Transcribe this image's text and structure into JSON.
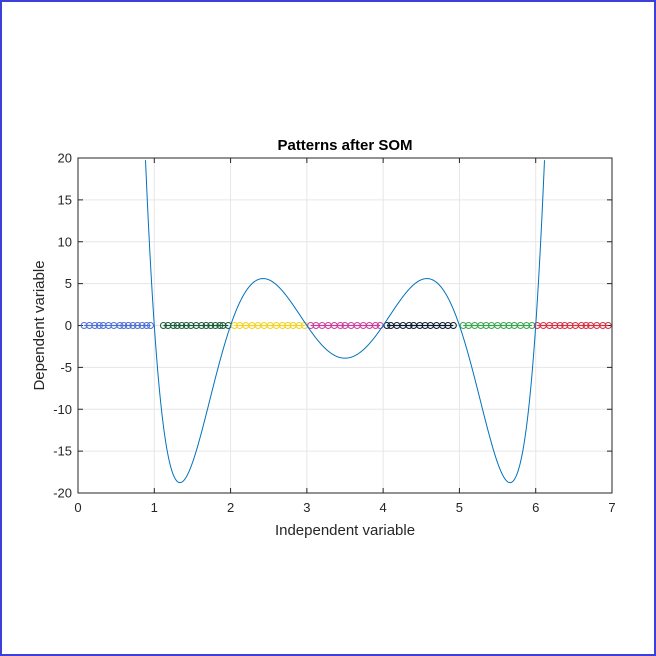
{
  "chart_data": {
    "type": "scatter",
    "title": "Patterns after SOM",
    "xlabel": "Independent variable",
    "ylabel": "Dependent variable",
    "xlim": [
      0,
      7
    ],
    "ylim": [
      -20,
      20
    ],
    "xticks": [
      0,
      1,
      2,
      3,
      4,
      5,
      6,
      7
    ],
    "yticks": [
      -20,
      -15,
      -10,
      -5,
      0,
      5,
      10,
      15,
      20
    ],
    "grid": true,
    "curve": {
      "type": "line",
      "color": "#0072bd",
      "roots": [
        1,
        2,
        3,
        4,
        5,
        6
      ],
      "scale": 1.11,
      "description_points": [
        [
          1.35,
          -16.9
        ],
        [
          2.44,
          5.0
        ],
        [
          3.5,
          -3.5
        ],
        [
          4.56,
          5.0
        ],
        [
          5.65,
          -16.9
        ]
      ]
    },
    "series": [
      {
        "color": "#4d6fd6",
        "x": [
          0.08,
          0.15,
          0.22,
          0.28,
          0.33,
          0.4,
          0.47,
          0.55,
          0.6,
          0.66,
          0.72,
          0.78,
          0.84,
          0.9,
          0.95
        ]
      },
      {
        "color": "#1a5b3a",
        "x": [
          1.12,
          1.18,
          1.25,
          1.3,
          1.36,
          1.42,
          1.48,
          1.55,
          1.62,
          1.68,
          1.74,
          1.8,
          1.86,
          1.9,
          1.97
        ]
      },
      {
        "color": "#f2d21e",
        "x": [
          2.05,
          2.12,
          2.2,
          2.28,
          2.36,
          2.44,
          2.52,
          2.6,
          2.68,
          2.75,
          2.82,
          2.9,
          2.97
        ]
      },
      {
        "color": "#cc3d9a",
        "x": [
          3.05,
          3.12,
          3.2,
          3.28,
          3.36,
          3.44,
          3.5,
          3.58,
          3.66,
          3.74,
          3.82,
          3.9,
          3.96
        ]
      },
      {
        "color": "#0a1a30",
        "x": [
          4.05,
          4.1,
          4.18,
          4.26,
          4.34,
          4.4,
          4.48,
          4.55,
          4.62,
          4.7,
          4.78,
          4.85,
          4.92
        ]
      },
      {
        "color": "#3aa64c",
        "x": [
          5.05,
          5.12,
          5.2,
          5.28,
          5.35,
          5.42,
          5.5,
          5.58,
          5.65,
          5.72,
          5.8,
          5.88,
          5.95
        ]
      },
      {
        "color": "#d63043",
        "x": [
          6.02,
          6.1,
          6.18,
          6.25,
          6.32,
          6.38,
          6.45,
          6.52,
          6.6,
          6.66,
          6.72,
          6.8,
          6.88,
          6.95
        ]
      }
    ],
    "y_of_points": 0
  }
}
